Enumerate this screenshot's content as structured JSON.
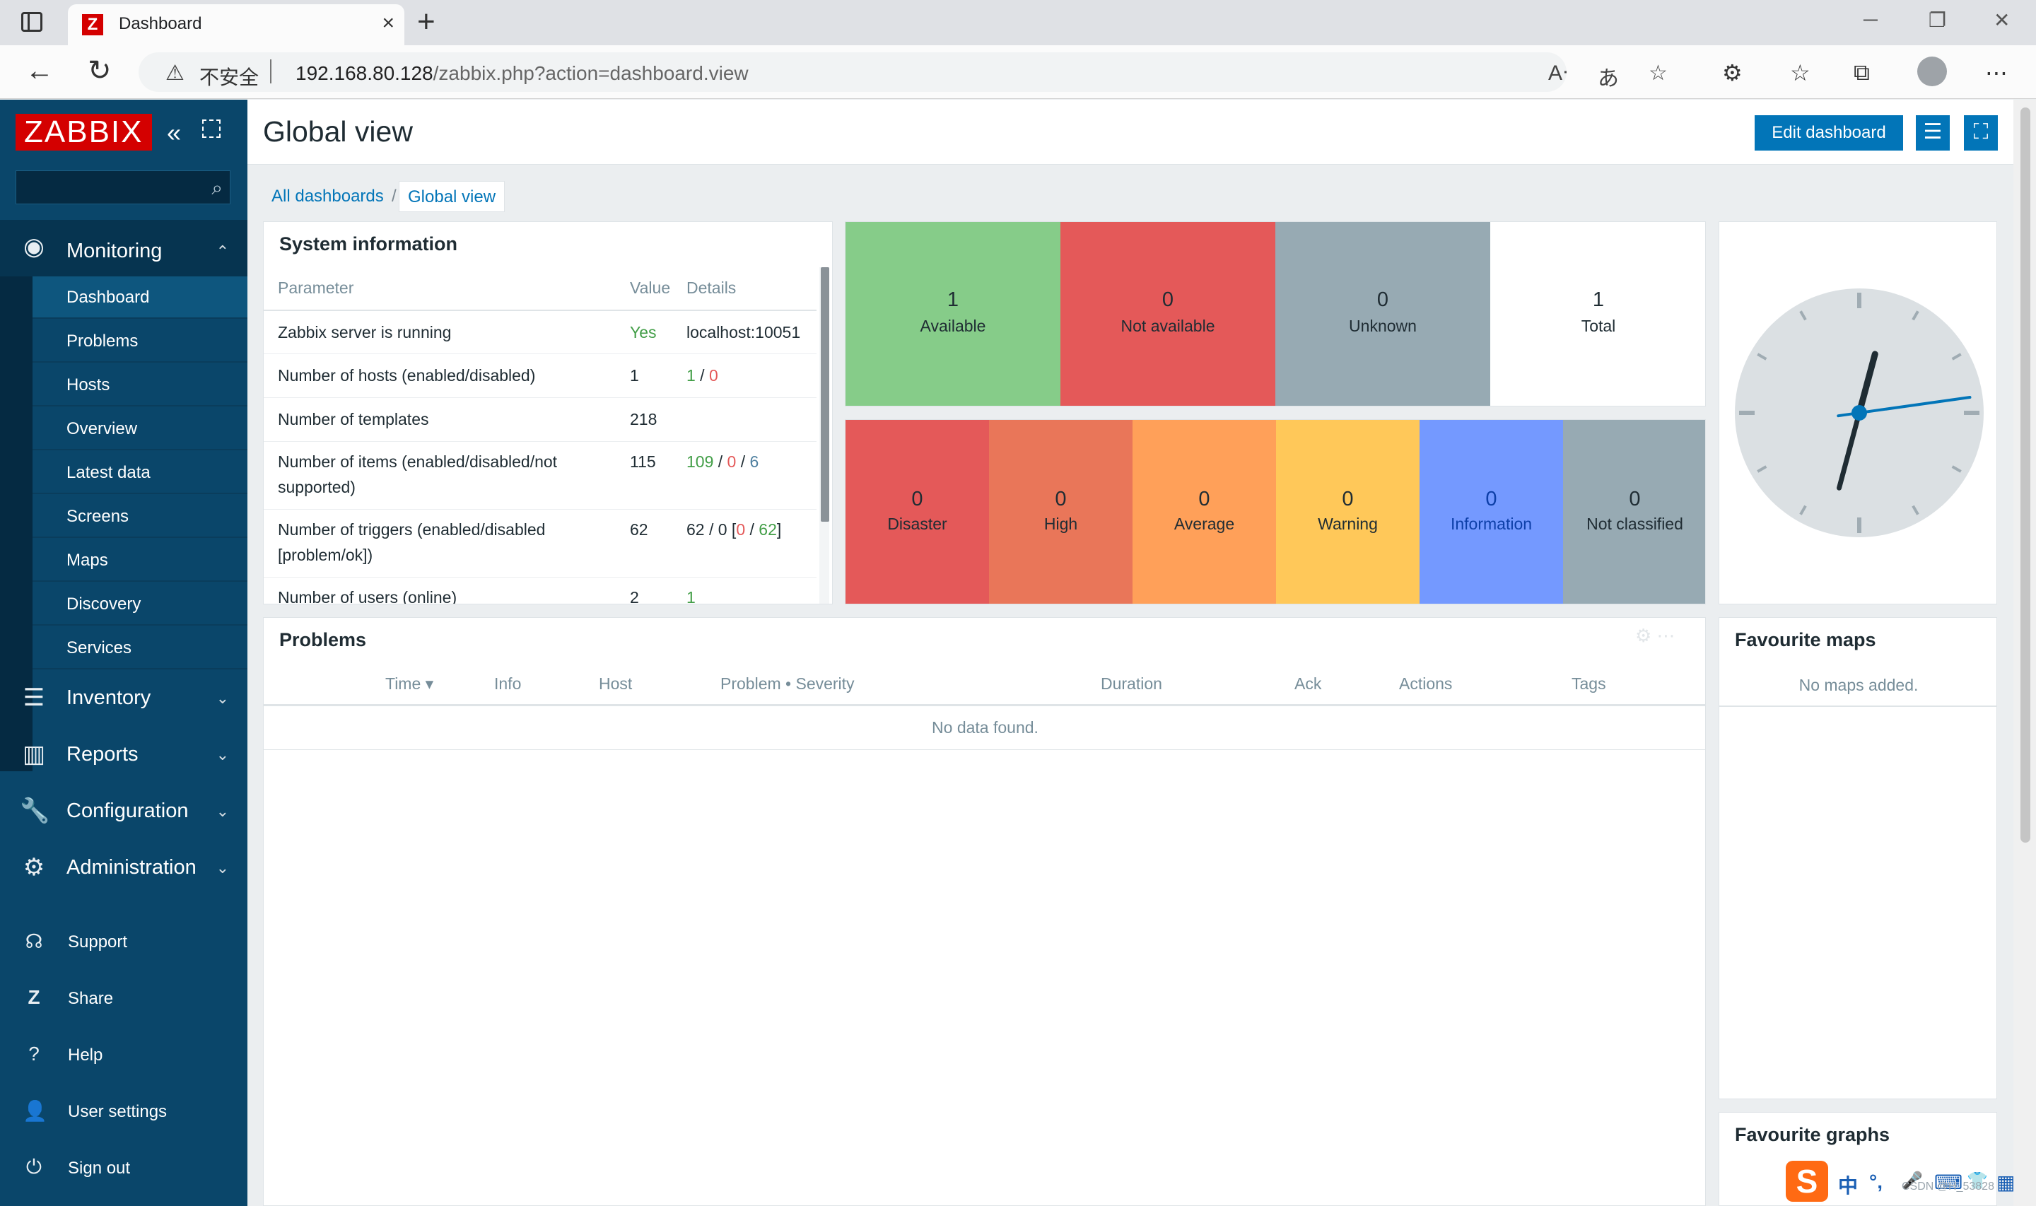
{
  "browser": {
    "tab_title": "Dashboard",
    "tab_favicon": "Z",
    "tab_close": "×",
    "new_tab": "+",
    "insecure_label": "不安全",
    "url_host": "192.168.80.128",
    "url_path": "/zabbix.php?action=dashboard.view",
    "icons": [
      "back-icon",
      "refresh-icon",
      "read-aloud-icon",
      "translate-icon",
      "add-favorite-icon",
      "extensions-icon",
      "favorites-icon",
      "collections-icon",
      "profile-icon",
      "more-icon"
    ]
  },
  "sidebar": {
    "logo": "ZABBIX",
    "search_placeholder": "",
    "monitoring": {
      "label": "Monitoring",
      "items": [
        "Dashboard",
        "Problems",
        "Hosts",
        "Overview",
        "Latest data",
        "Screens",
        "Maps",
        "Discovery",
        "Services"
      ],
      "active": "Dashboard"
    },
    "menus": [
      {
        "label": "Inventory",
        "icon": "list-icon"
      },
      {
        "label": "Reports",
        "icon": "bar-chart-icon"
      },
      {
        "label": "Configuration",
        "icon": "wrench-icon"
      },
      {
        "label": "Administration",
        "icon": "gear-icon"
      }
    ],
    "footer": [
      {
        "label": "Support",
        "icon": "headset-icon"
      },
      {
        "label": "Share",
        "icon": "zabbix-share-icon"
      },
      {
        "label": "Help",
        "icon": "question-icon"
      },
      {
        "label": "User settings",
        "icon": "user-icon"
      },
      {
        "label": "Sign out",
        "icon": "power-icon"
      }
    ]
  },
  "header": {
    "title": "Global view",
    "edit_button": "Edit dashboard"
  },
  "breadcrumb": {
    "all": "All dashboards",
    "sep": "/",
    "current": "Global view"
  },
  "system_info": {
    "title": "System information",
    "columns": [
      "Parameter",
      "Value",
      "Details"
    ],
    "rows": [
      {
        "param": "Zabbix server is running",
        "value": "Yes",
        "details": "localhost:10051"
      },
      {
        "param": "Number of hosts (enabled/disabled)",
        "value": "1",
        "d1": "1",
        "d2": "0"
      },
      {
        "param": "Number of templates",
        "value": "218"
      },
      {
        "param": "Number of items (enabled/disabled/not supported)",
        "value": "115",
        "d1": "109",
        "d2": "0",
        "d3": "6"
      },
      {
        "param": "Number of triggers (enabled/disabled [problem/ok])",
        "value": "62",
        "d_prefix": "62 / 0 [",
        "d1": "0",
        "d2": "62",
        "d_suffix": "]"
      },
      {
        "param": "Number of users (online)",
        "value": "2",
        "d1": "1"
      }
    ]
  },
  "host_availability": [
    {
      "count": "1",
      "label": "Available",
      "color": "#86cc89"
    },
    {
      "count": "0",
      "label": "Not available",
      "color": "#e45959"
    },
    {
      "count": "0",
      "label": "Unknown",
      "color": "#97aab3"
    },
    {
      "count": "1",
      "label": "Total",
      "color": "#ffffff"
    }
  ],
  "problems_by_severity": [
    {
      "count": "0",
      "label": "Disaster",
      "color": "#e45959"
    },
    {
      "count": "0",
      "label": "High",
      "color": "#e97659"
    },
    {
      "count": "0",
      "label": "Average",
      "color": "#ffa059"
    },
    {
      "count": "0",
      "label": "Warning",
      "color": "#ffc859"
    },
    {
      "count": "0",
      "label": "Information",
      "color": "#7499ff"
    },
    {
      "count": "0",
      "label": "Not classified",
      "color": "#97aab3"
    }
  ],
  "clock": {
    "hour": 1,
    "minute": 2,
    "second": 16
  },
  "problems": {
    "title": "Problems",
    "columns": [
      "Time ▾",
      "Info",
      "Host",
      "Problem • Severity",
      "Duration",
      "Ack",
      "Actions",
      "Tags"
    ],
    "empty": "No data found."
  },
  "favourite_maps": {
    "title": "Favourite maps",
    "empty": "No maps added."
  },
  "favourite_graphs": {
    "title": "Favourite graphs"
  },
  "ime": {
    "logo": "S",
    "lang": "中",
    "punct": "°,",
    "mic": "🎤",
    "kbd": "⌨",
    "skin": "👕",
    "grid": "▦"
  },
  "watermark": "CSDN @H_53828"
}
